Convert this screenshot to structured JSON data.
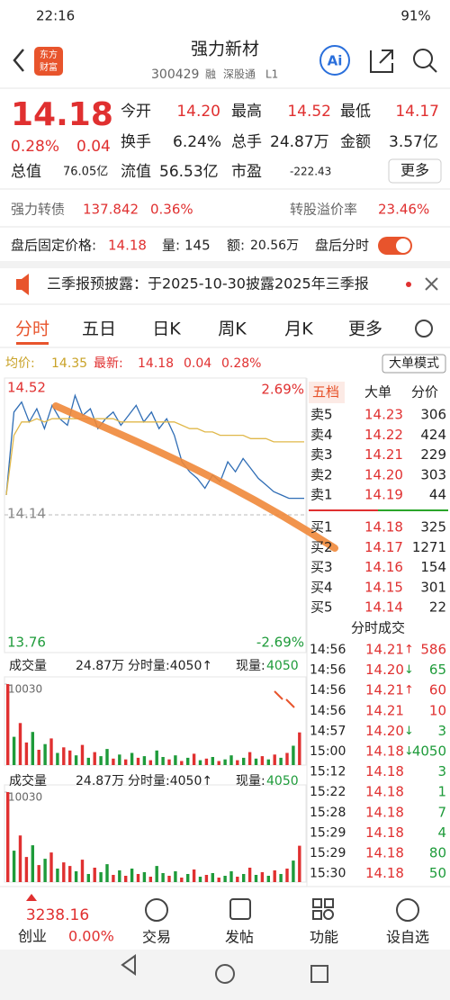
{
  "status_bar": {
    "time": "22:16",
    "battery": "91%"
  },
  "header": {
    "title": "强力新材",
    "code": "300429",
    "tags": [
      "融",
      "深股通",
      "L1"
    ],
    "logo": [
      "东方",
      "财富"
    ]
  },
  "quote": {
    "price": "14.18",
    "change_pct": "0.28%",
    "change": "0.04",
    "fields": [
      {
        "label": "今开",
        "value": "14.20"
      },
      {
        "label": "最高",
        "value": "14.52"
      },
      {
        "label": "最低",
        "value": "14.17"
      },
      {
        "label": "换手",
        "value": "6.24%"
      },
      {
        "label": "总手",
        "value": "24.87万"
      },
      {
        "label": "金额",
        "value": "3.57亿"
      },
      {
        "label": "总值",
        "value": "76.05亿"
      },
      {
        "label": "流值",
        "value": "56.53亿"
      },
      {
        "label": "市盈",
        "value": "-222.43"
      }
    ],
    "more": "更多"
  },
  "bond": {
    "name": "强力转债",
    "price": "137.842",
    "change": "0.36%",
    "premium_label": "转股溢价率",
    "premium": "23.46%"
  },
  "after_hours": {
    "price_label": "盘后固定价格:",
    "price": "14.18",
    "volume_label": "量:",
    "volume": "145",
    "amount_label": "额:",
    "amount": "20.56万",
    "chart_label": "盘后分时"
  },
  "notice": "三季报预披露：于2025-10-30披露2025年三季报",
  "tabs": [
    "分时",
    "五日",
    "日K",
    "周K",
    "月K",
    "更多"
  ],
  "chart_header": {
    "avg_label": "均价:",
    "avg": "14.35",
    "last_label": "最新:",
    "last": "14.18",
    "change": "0.04",
    "change_pct": "0.28%",
    "mode": "大单模式"
  },
  "chart_data": [
    {
      "type": "line",
      "ylim": [
        13.76,
        14.52
      ],
      "yticks": [
        13.76,
        14.14,
        14.52
      ],
      "pct_labels": [
        "-2.69%",
        "2.69%"
      ],
      "series": [
        {
          "color": "#2f6db5",
          "values": [
            14.2,
            14.45,
            14.48,
            14.42,
            14.46,
            14.4,
            14.47,
            14.43,
            14.41,
            14.5,
            14.44,
            14.46,
            14.4,
            14.43,
            14.45,
            14.41,
            14.44,
            14.47,
            14.42,
            14.45,
            14.4,
            14.43,
            14.38,
            14.3,
            14.27,
            14.25,
            14.22,
            14.26,
            14.24,
            14.3,
            14.27,
            14.31,
            14.28,
            14.25,
            14.23,
            14.21,
            14.2,
            14.19,
            14.19,
            14.19
          ]
        },
        {
          "color": "#e0b84a",
          "values": [
            14.2,
            14.38,
            14.42,
            14.42,
            14.43,
            14.42,
            14.43,
            14.43,
            14.43,
            14.43,
            14.43,
            14.43,
            14.43,
            14.43,
            14.43,
            14.42,
            14.42,
            14.42,
            14.42,
            14.42,
            14.42,
            14.42,
            14.42,
            14.41,
            14.4,
            14.4,
            14.39,
            14.39,
            14.38,
            14.38,
            14.38,
            14.38,
            14.37,
            14.37,
            14.37,
            14.36,
            14.36,
            14.36,
            14.36,
            14.36
          ]
        }
      ]
    },
    {
      "type": "bar",
      "ylim": [
        0,
        10030
      ],
      "yticks": [
        10030
      ],
      "values": [
        10030,
        3500,
        5200,
        2800,
        4100,
        1900,
        2600,
        3300,
        1500,
        2200,
        1800,
        1200,
        2500,
        900,
        1600,
        1100,
        2000,
        800,
        1300,
        700,
        1500,
        900,
        1100,
        600,
        1800,
        1000,
        700,
        1200,
        500,
        900,
        1400,
        600,
        800,
        1000,
        500,
        700,
        1200,
        600,
        900,
        1600,
        800,
        1100,
        700,
        1300,
        900,
        1500,
        2400,
        4050
      ],
      "directions": [
        "up",
        "down",
        "up",
        "up",
        "down",
        "up",
        "down",
        "up",
        "down",
        "up",
        "up",
        "down",
        "up",
        "down",
        "up",
        "down",
        "down",
        "up",
        "down",
        "up",
        "down",
        "up",
        "down",
        "up",
        "down",
        "down",
        "up",
        "down",
        "up",
        "down",
        "up",
        "down",
        "up",
        "down",
        "up",
        "down",
        "down",
        "up",
        "down",
        "up",
        "down",
        "up",
        "down",
        "up",
        "down",
        "up",
        "down",
        "up"
      ]
    }
  ],
  "volume_header": {
    "label": "成交量",
    "total": "24.87万",
    "current_label": "分时量:4050↑",
    "now_label": "现量:",
    "now": "4050"
  },
  "order_book": {
    "tabs": [
      "五档",
      "大单",
      "分价"
    ],
    "sell": [
      {
        "label": "卖5",
        "price": "14.23",
        "volume": "306"
      },
      {
        "label": "卖4",
        "price": "14.22",
        "volume": "424"
      },
      {
        "label": "卖3",
        "price": "14.21",
        "volume": "229"
      },
      {
        "label": "卖2",
        "price": "14.20",
        "volume": "303"
      },
      {
        "label": "卖1",
        "price": "14.19",
        "volume": "44"
      }
    ],
    "buy": [
      {
        "label": "买1",
        "price": "14.18",
        "volume": "325"
      },
      {
        "label": "买2",
        "price": "14.17",
        "volume": "1271"
      },
      {
        "label": "买3",
        "price": "14.16",
        "volume": "154"
      },
      {
        "label": "买4",
        "price": "14.15",
        "volume": "301"
      },
      {
        "label": "买5",
        "price": "14.14",
        "volume": "22"
      }
    ]
  },
  "trades": {
    "title": "分时成交",
    "rows": [
      {
        "time": "14:56",
        "price": "14.21",
        "arrow": "↑",
        "volume": "586",
        "side": "buy"
      },
      {
        "time": "14:56",
        "price": "14.20",
        "arrow": "↓",
        "volume": "65",
        "side": "sell"
      },
      {
        "time": "14:56",
        "price": "14.21",
        "arrow": "↑",
        "volume": "60",
        "side": "buy"
      },
      {
        "time": "14:56",
        "price": "14.21",
        "volume": "10",
        "side": "buy"
      },
      {
        "time": "14:57",
        "price": "14.20",
        "arrow": "↓",
        "volume": "3",
        "side": "sell"
      },
      {
        "time": "15:00",
        "price": "14.18",
        "arrow": "↓",
        "volume": "4050",
        "side": "sell"
      },
      {
        "time": "15:12",
        "price": "14.18",
        "volume": "3",
        "side": "sell"
      },
      {
        "time": "15:22",
        "price": "14.18",
        "volume": "1",
        "side": "sell"
      },
      {
        "time": "15:28",
        "price": "14.18",
        "volume": "7",
        "side": "sell"
      },
      {
        "time": "15:29",
        "price": "14.18",
        "volume": "4",
        "side": "sell"
      },
      {
        "time": "15:29",
        "price": "14.18",
        "volume": "80",
        "side": "sell"
      },
      {
        "time": "15:30",
        "price": "14.18",
        "volume": "50",
        "side": "sell"
      }
    ]
  },
  "index": {
    "value": "3238.16",
    "name": "创业",
    "change": "0.00%"
  },
  "nav": [
    "交易",
    "发帖",
    "功能",
    "设自选"
  ]
}
